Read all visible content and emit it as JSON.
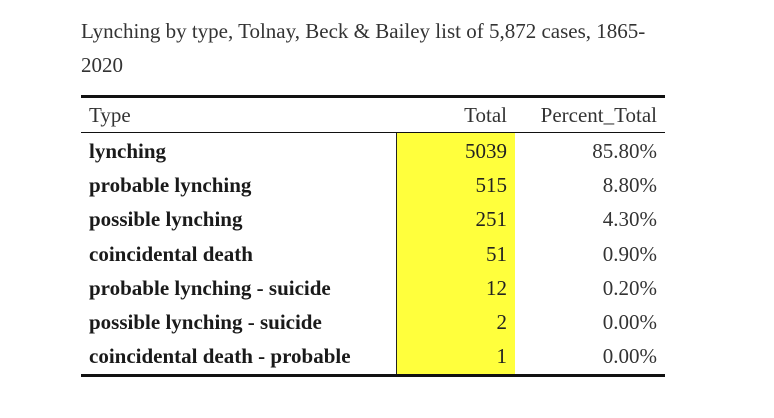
{
  "title": "Lynching by type, Tolnay, Beck & Bailey list of 5,872 cases, 1865-2020",
  "colors": {
    "highlight": "#ffff3c",
    "rule": "#111111"
  },
  "table": {
    "headers": {
      "type": "Type",
      "total": "Total",
      "percent": "Percent_Total"
    },
    "rows": [
      {
        "type": "lynching",
        "total": "5039",
        "percent": "85.80%"
      },
      {
        "type": "probable lynching",
        "total": "515",
        "percent": "8.80%"
      },
      {
        "type": "possible lynching",
        "total": "251",
        "percent": "4.30%"
      },
      {
        "type": "coincidental death",
        "total": "51",
        "percent": "0.90%"
      },
      {
        "type": "probable lynching - suicide",
        "total": "12",
        "percent": "0.20%"
      },
      {
        "type": "possible lynching - suicide",
        "total": "2",
        "percent": "0.00%"
      },
      {
        "type": "coincidental death - probable",
        "total": "1",
        "percent": "0.00%"
      }
    ]
  }
}
